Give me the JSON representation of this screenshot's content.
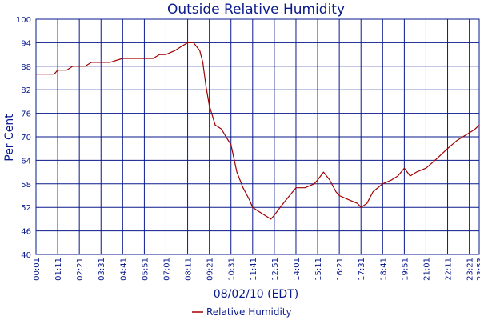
{
  "chart_data": {
    "type": "line",
    "title": "Outside Relative Humidity",
    "xlabel": "08/02/10 (EDT)",
    "ylabel": "Per Cent",
    "ylim": [
      40,
      100
    ],
    "yticks": [
      40,
      46,
      52,
      58,
      64,
      70,
      76,
      82,
      88,
      94,
      100
    ],
    "xlim_minutes": [
      1,
      1433
    ],
    "xticks": [
      "00:01",
      "01:11",
      "02:21",
      "03:31",
      "04:41",
      "05:51",
      "07:01",
      "08:11",
      "09:21",
      "10:31",
      "11:41",
      "12:51",
      "14:01",
      "15:11",
      "16:21",
      "17:31",
      "18:41",
      "19:51",
      "21:01",
      "22:11",
      "23:21",
      "23:53"
    ],
    "grid": true,
    "legend_position": "bottom-center",
    "colors": {
      "grid": "#0a1a8c",
      "series": "#a00000",
      "text": "#0a1a8c"
    },
    "series": [
      {
        "name": "Relative Humidity",
        "x": [
          "00:01",
          "01:00",
          "01:11",
          "01:40",
          "02:00",
          "02:21",
          "02:40",
          "03:00",
          "03:31",
          "04:00",
          "04:41",
          "05:20",
          "05:51",
          "06:20",
          "06:40",
          "07:01",
          "07:30",
          "07:50",
          "08:11",
          "08:30",
          "08:50",
          "09:00",
          "09:10",
          "09:21",
          "09:40",
          "10:00",
          "10:15",
          "10:31",
          "10:50",
          "11:10",
          "11:30",
          "11:41",
          "12:00",
          "12:20",
          "12:40",
          "12:51",
          "13:10",
          "13:30",
          "14:01",
          "14:30",
          "15:00",
          "15:11",
          "15:30",
          "15:50",
          "16:10",
          "16:21",
          "16:50",
          "17:20",
          "17:31",
          "17:50",
          "18:10",
          "18:41",
          "19:10",
          "19:30",
          "19:51",
          "20:10",
          "20:30",
          "21:01",
          "21:30",
          "22:11",
          "22:40",
          "23:00",
          "23:21",
          "23:40",
          "23:53"
        ],
        "values": [
          86,
          86,
          87,
          87,
          88,
          88,
          88,
          89,
          89,
          89,
          90,
          90,
          90,
          90,
          91,
          91,
          92,
          93,
          94,
          94,
          92,
          89,
          83,
          78,
          73,
          72,
          70,
          68,
          61,
          57,
          54,
          52,
          51,
          50,
          49,
          50,
          52,
          54,
          57,
          57,
          58,
          59,
          61,
          59,
          56,
          55,
          54,
          53,
          52,
          53,
          56,
          58,
          59,
          60,
          62,
          60,
          61,
          62,
          64,
          67,
          69,
          70,
          71,
          72,
          73
        ]
      }
    ]
  }
}
